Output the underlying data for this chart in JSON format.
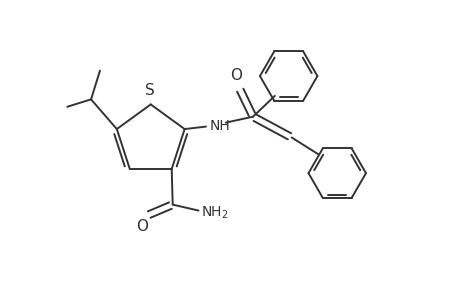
{
  "bg_color": "#ffffff",
  "line_color": "#333333",
  "line_width": 1.4,
  "figsize": [
    4.6,
    3.0
  ],
  "dpi": 100,
  "xlim": [
    0,
    9.2
  ],
  "ylim": [
    0,
    6.0
  ]
}
